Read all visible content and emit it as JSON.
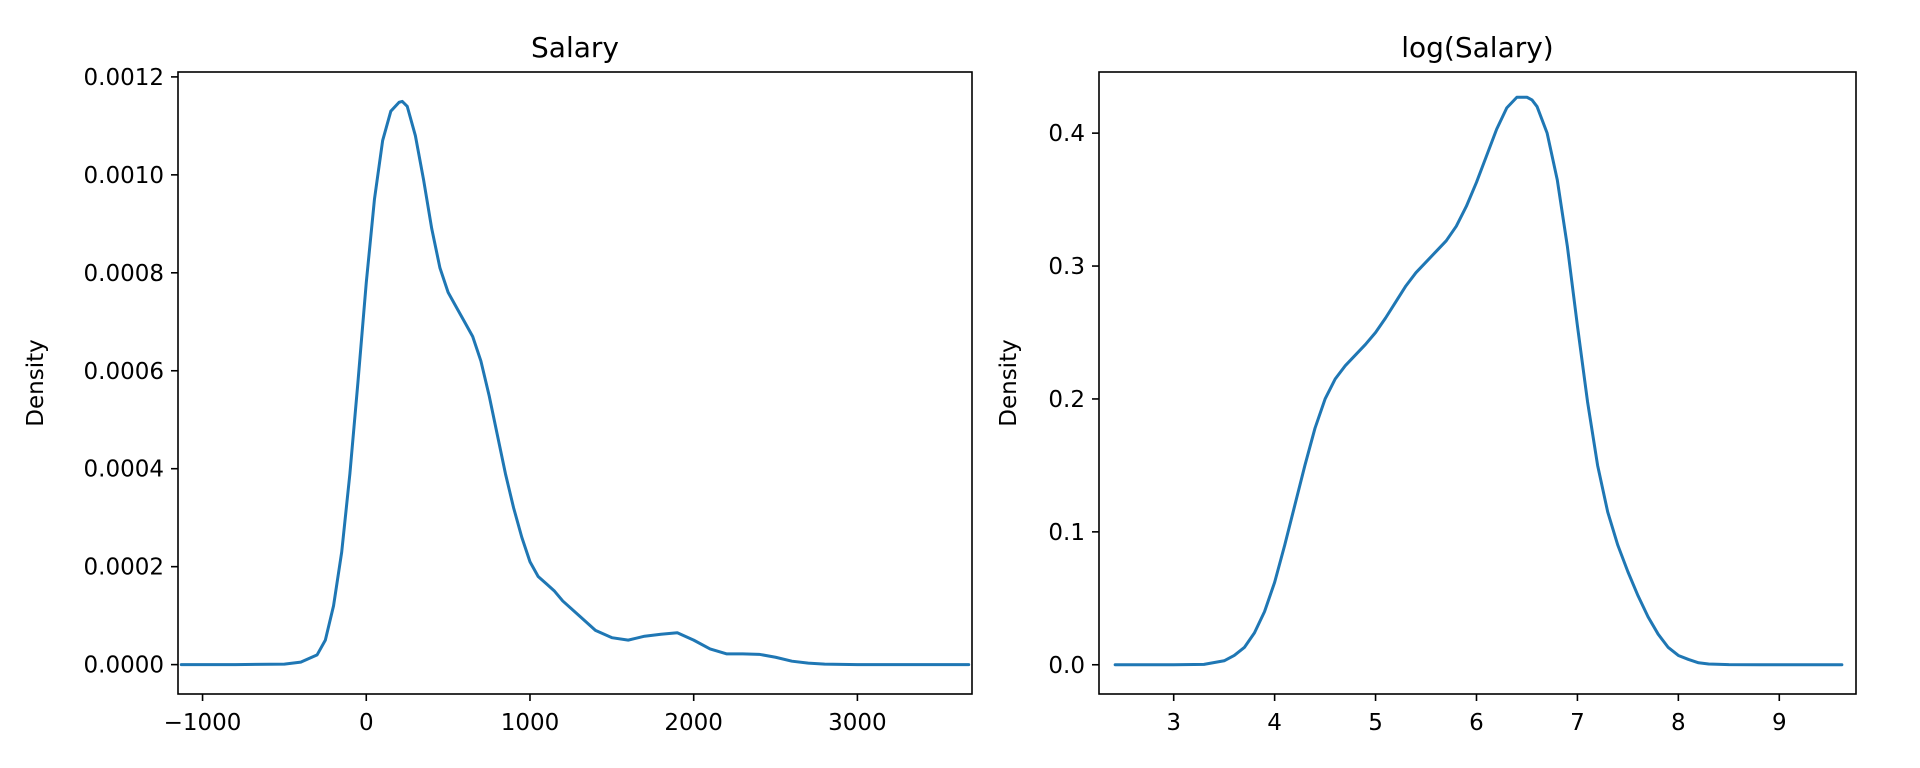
{
  "chart_data": [
    {
      "type": "line",
      "title": "Salary",
      "xlabel": "",
      "ylabel": "Density",
      "xlim": [
        -1150,
        3700
      ],
      "ylim": [
        -6e-05,
        0.00121
      ],
      "xticks": [
        -1000,
        0,
        1000,
        2000,
        3000
      ],
      "xtick_labels": [
        "−1000",
        "0",
        "1000",
        "2000",
        "3000"
      ],
      "yticks": [
        0,
        0.0002,
        0.0004,
        0.0006,
        0.0008,
        0.001,
        0.0012
      ],
      "ytick_labels": [
        "0.0000",
        "0.0002",
        "0.0004",
        "0.0006",
        "0.0008",
        "0.0010",
        "0.0012"
      ],
      "grid": false,
      "color": "#1f77b4",
      "series": [
        {
          "x": [
            -1130,
            -800,
            -500,
            -400,
            -300,
            -250,
            -200,
            -150,
            -100,
            -50,
            0,
            50,
            100,
            150,
            200,
            220,
            250,
            300,
            350,
            400,
            450,
            500,
            550,
            600,
            650,
            700,
            750,
            800,
            850,
            900,
            950,
            1000,
            1050,
            1100,
            1150,
            1200,
            1300,
            1400,
            1500,
            1600,
            1700,
            1800,
            1900,
            2000,
            2100,
            2200,
            2300,
            2400,
            2500,
            2600,
            2700,
            2800,
            3000,
            3300,
            3680
          ],
          "y": [
            0,
            0,
            1e-06,
            5e-06,
            2e-05,
            5e-05,
            0.00012,
            0.00023,
            0.00039,
            0.00058,
            0.00078,
            0.00095,
            0.00107,
            0.00113,
            0.001148,
            0.00115,
            0.00114,
            0.00108,
            0.00099,
            0.00089,
            0.00081,
            0.00076,
            0.00073,
            0.0007,
            0.00067,
            0.00062,
            0.00055,
            0.00047,
            0.00039,
            0.00032,
            0.00026,
            0.00021,
            0.00018,
            0.000165,
            0.00015,
            0.00013,
            0.0001,
            7e-05,
            5.5e-05,
            5e-05,
            5.8e-05,
            6.2e-05,
            6.5e-05,
            5e-05,
            3.2e-05,
            2.2e-05,
            2.2e-05,
            2.1e-05,
            1.5e-05,
            7e-06,
            3e-06,
            1e-06,
            0,
            0,
            0
          ]
        }
      ]
    },
    {
      "type": "line",
      "title": "log(Salary)",
      "xlabel": "",
      "ylabel": "Density",
      "xlim": [
        2.26,
        9.76
      ],
      "ylim": [
        -0.022,
        0.446
      ],
      "xticks": [
        3,
        4,
        5,
        6,
        7,
        8,
        9
      ],
      "xtick_labels": [
        "3",
        "4",
        "5",
        "6",
        "7",
        "8",
        "9"
      ],
      "yticks": [
        0,
        0.1,
        0.2,
        0.3,
        0.4
      ],
      "ytick_labels": [
        "0.0",
        "0.1",
        "0.2",
        "0.3",
        "0.4"
      ],
      "grid": false,
      "color": "#1f77b4",
      "series": [
        {
          "x": [
            2.42,
            3.0,
            3.3,
            3.5,
            3.6,
            3.7,
            3.8,
            3.9,
            4.0,
            4.1,
            4.2,
            4.3,
            4.4,
            4.5,
            4.6,
            4.7,
            4.8,
            4.9,
            5.0,
            5.1,
            5.2,
            5.3,
            5.4,
            5.5,
            5.6,
            5.7,
            5.8,
            5.9,
            6.0,
            6.1,
            6.2,
            6.3,
            6.4,
            6.5,
            6.55,
            6.6,
            6.7,
            6.8,
            6.9,
            7.0,
            7.1,
            7.2,
            7.3,
            7.4,
            7.5,
            7.6,
            7.7,
            7.8,
            7.9,
            8.0,
            8.1,
            8.2,
            8.3,
            8.5,
            8.8,
            9.2,
            9.62
          ],
          "y": [
            0,
            0,
            0.0003,
            0.003,
            0.007,
            0.013,
            0.024,
            0.04,
            0.062,
            0.09,
            0.12,
            0.15,
            0.178,
            0.2,
            0.215,
            0.225,
            0.233,
            0.241,
            0.25,
            0.261,
            0.273,
            0.285,
            0.295,
            0.303,
            0.311,
            0.319,
            0.33,
            0.345,
            0.363,
            0.383,
            0.403,
            0.419,
            0.427,
            0.427,
            0.425,
            0.42,
            0.4,
            0.365,
            0.315,
            0.255,
            0.198,
            0.15,
            0.115,
            0.09,
            0.07,
            0.052,
            0.036,
            0.023,
            0.013,
            0.007,
            0.004,
            0.0015,
            0.0006,
            0.0001,
            0,
            0,
            0
          ]
        }
      ]
    }
  ]
}
